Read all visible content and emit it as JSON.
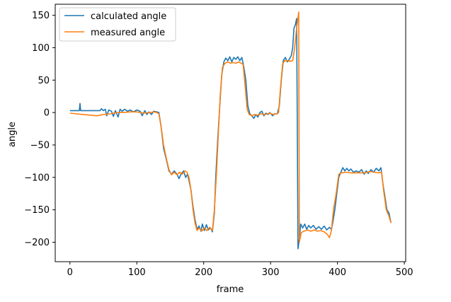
{
  "chart_data": {
    "type": "line",
    "xlabel": "frame",
    "ylabel": "angle",
    "xlim": [
      -22,
      502
    ],
    "ylim": [
      -230,
      167
    ],
    "xticks": [
      0,
      100,
      200,
      300,
      400,
      500
    ],
    "yticks": [
      -200,
      -150,
      -100,
      -50,
      0,
      50,
      100,
      150
    ],
    "grid": false,
    "legend": "top-left",
    "series": [
      {
        "name": "calculated angle",
        "color": "#1f77b4",
        "points": [
          [
            0,
            3
          ],
          [
            14,
            3
          ],
          [
            15,
            14
          ],
          [
            16,
            3
          ],
          [
            45,
            3
          ],
          [
            47,
            6
          ],
          [
            50,
            3
          ],
          [
            53,
            5
          ],
          [
            55,
            -5
          ],
          [
            58,
            4
          ],
          [
            62,
            2
          ],
          [
            65,
            -6
          ],
          [
            68,
            3
          ],
          [
            72,
            -7
          ],
          [
            75,
            5
          ],
          [
            78,
            2
          ],
          [
            82,
            5
          ],
          [
            86,
            2
          ],
          [
            90,
            4
          ],
          [
            95,
            1
          ],
          [
            100,
            4
          ],
          [
            105,
            2
          ],
          [
            108,
            -5
          ],
          [
            112,
            3
          ],
          [
            115,
            -3
          ],
          [
            118,
            1
          ],
          [
            122,
            -3
          ],
          [
            125,
            2
          ],
          [
            130,
            1
          ],
          [
            133,
            0
          ],
          [
            136,
            -20
          ],
          [
            140,
            -55
          ],
          [
            144,
            -72
          ],
          [
            148,
            -90
          ],
          [
            152,
            -95
          ],
          [
            156,
            -90
          ],
          [
            160,
            -95
          ],
          [
            163,
            -102
          ],
          [
            166,
            -95
          ],
          [
            170,
            -90
          ],
          [
            173,
            -100
          ],
          [
            176,
            -95
          ],
          [
            178,
            -105
          ],
          [
            181,
            -120
          ],
          [
            184,
            -145
          ],
          [
            187,
            -165
          ],
          [
            190,
            -180
          ],
          [
            193,
            -175
          ],
          [
            196,
            -183
          ],
          [
            198,
            -172
          ],
          [
            201,
            -182
          ],
          [
            204,
            -173
          ],
          [
            207,
            -181
          ],
          [
            210,
            -178
          ],
          [
            213,
            -184
          ],
          [
            216,
            -155
          ],
          [
            218,
            -100
          ],
          [
            221,
            -40
          ],
          [
            224,
            10
          ],
          [
            227,
            58
          ],
          [
            230,
            78
          ],
          [
            233,
            84
          ],
          [
            236,
            80
          ],
          [
            239,
            86
          ],
          [
            242,
            78
          ],
          [
            245,
            85
          ],
          [
            248,
            82
          ],
          [
            251,
            86
          ],
          [
            254,
            80
          ],
          [
            257,
            85
          ],
          [
            260,
            70
          ],
          [
            263,
            50
          ],
          [
            266,
            10
          ],
          [
            269,
            -2
          ],
          [
            272,
            -5
          ],
          [
            275,
            -9
          ],
          [
            278,
            -3
          ],
          [
            281,
            -7
          ],
          [
            284,
            0
          ],
          [
            287,
            2
          ],
          [
            290,
            -5
          ],
          [
            293,
            -1
          ],
          [
            296,
            -3
          ],
          [
            299,
            0
          ],
          [
            303,
            -5
          ],
          [
            306,
            -2
          ],
          [
            310,
            -2
          ],
          [
            313,
            10
          ],
          [
            316,
            50
          ],
          [
            319,
            80
          ],
          [
            322,
            85
          ],
          [
            325,
            78
          ],
          [
            328,
            82
          ],
          [
            331,
            88
          ],
          [
            333,
            100
          ],
          [
            335,
            130
          ],
          [
            337,
            135
          ],
          [
            339,
            145
          ],
          [
            341,
            -210
          ],
          [
            343,
            -195
          ],
          [
            345,
            -172
          ],
          [
            348,
            -178
          ],
          [
            351,
            -172
          ],
          [
            354,
            -180
          ],
          [
            357,
            -174
          ],
          [
            360,
            -178
          ],
          [
            364,
            -174
          ],
          [
            368,
            -180
          ],
          [
            372,
            -176
          ],
          [
            376,
            -180
          ],
          [
            380,
            -175
          ],
          [
            384,
            -181
          ],
          [
            388,
            -177
          ],
          [
            391,
            -180
          ],
          [
            393,
            -170
          ],
          [
            396,
            -150
          ],
          [
            399,
            -125
          ],
          [
            402,
            -100
          ],
          [
            405,
            -92
          ],
          [
            408,
            -85
          ],
          [
            411,
            -90
          ],
          [
            414,
            -86
          ],
          [
            417,
            -90
          ],
          [
            420,
            -87
          ],
          [
            424,
            -92
          ],
          [
            428,
            -90
          ],
          [
            432,
            -92
          ],
          [
            436,
            -88
          ],
          [
            440,
            -95
          ],
          [
            443,
            -90
          ],
          [
            446,
            -94
          ],
          [
            450,
            -88
          ],
          [
            454,
            -92
          ],
          [
            458,
            -86
          ],
          [
            462,
            -90
          ],
          [
            465,
            -85
          ],
          [
            468,
            -110
          ],
          [
            471,
            -130
          ],
          [
            474,
            -150
          ],
          [
            477,
            -155
          ],
          [
            480,
            -170
          ]
        ]
      },
      {
        "name": "measured angle",
        "color": "#ff7f0e",
        "points": [
          [
            0,
            -1
          ],
          [
            10,
            -2
          ],
          [
            20,
            -3
          ],
          [
            30,
            -4
          ],
          [
            40,
            -5
          ],
          [
            50,
            -3
          ],
          [
            60,
            -2
          ],
          [
            70,
            0
          ],
          [
            80,
            0
          ],
          [
            90,
            1
          ],
          [
            100,
            1
          ],
          [
            110,
            -1
          ],
          [
            120,
            0
          ],
          [
            125,
            1
          ],
          [
            130,
            0
          ],
          [
            133,
            -2
          ],
          [
            136,
            -20
          ],
          [
            140,
            -50
          ],
          [
            144,
            -70
          ],
          [
            148,
            -88
          ],
          [
            152,
            -96
          ],
          [
            156,
            -92
          ],
          [
            160,
            -96
          ],
          [
            164,
            -92
          ],
          [
            168,
            -95
          ],
          [
            172,
            -90
          ],
          [
            175,
            -92
          ],
          [
            178,
            -100
          ],
          [
            181,
            -120
          ],
          [
            184,
            -150
          ],
          [
            187,
            -170
          ],
          [
            190,
            -182
          ],
          [
            193,
            -178
          ],
          [
            197,
            -183
          ],
          [
            201,
            -178
          ],
          [
            205,
            -182
          ],
          [
            209,
            -177
          ],
          [
            213,
            -182
          ],
          [
            216,
            -150
          ],
          [
            219,
            -95
          ],
          [
            222,
            -30
          ],
          [
            225,
            30
          ],
          [
            228,
            70
          ],
          [
            232,
            76
          ],
          [
            236,
            78
          ],
          [
            240,
            76
          ],
          [
            244,
            77
          ],
          [
            248,
            76
          ],
          [
            252,
            78
          ],
          [
            256,
            76
          ],
          [
            259,
            74
          ],
          [
            262,
            40
          ],
          [
            265,
            5
          ],
          [
            268,
            -3
          ],
          [
            272,
            -5
          ],
          [
            276,
            -3
          ],
          [
            280,
            -4
          ],
          [
            286,
            -2
          ],
          [
            292,
            -3
          ],
          [
            298,
            -1
          ],
          [
            304,
            -3
          ],
          [
            309,
            -2
          ],
          [
            312,
            0
          ],
          [
            315,
            40
          ],
          [
            318,
            75
          ],
          [
            321,
            80
          ],
          [
            325,
            80
          ],
          [
            329,
            79
          ],
          [
            333,
            80
          ],
          [
            336,
            100
          ],
          [
            339,
            130
          ],
          [
            342,
            155
          ],
          [
            343,
            -200
          ],
          [
            346,
            -185
          ],
          [
            350,
            -183
          ],
          [
            355,
            -181
          ],
          [
            360,
            -183
          ],
          [
            365,
            -181
          ],
          [
            370,
            -183
          ],
          [
            375,
            -182
          ],
          [
            380,
            -184
          ],
          [
            385,
            -188
          ],
          [
            388,
            -193
          ],
          [
            391,
            -182
          ],
          [
            394,
            -150
          ],
          [
            398,
            -125
          ],
          [
            402,
            -95
          ],
          [
            406,
            -93
          ],
          [
            412,
            -92
          ],
          [
            420,
            -93
          ],
          [
            430,
            -93
          ],
          [
            440,
            -93
          ],
          [
            450,
            -91
          ],
          [
            460,
            -93
          ],
          [
            466,
            -92
          ],
          [
            469,
            -120
          ],
          [
            473,
            -150
          ],
          [
            477,
            -160
          ],
          [
            480,
            -170
          ]
        ]
      }
    ]
  }
}
